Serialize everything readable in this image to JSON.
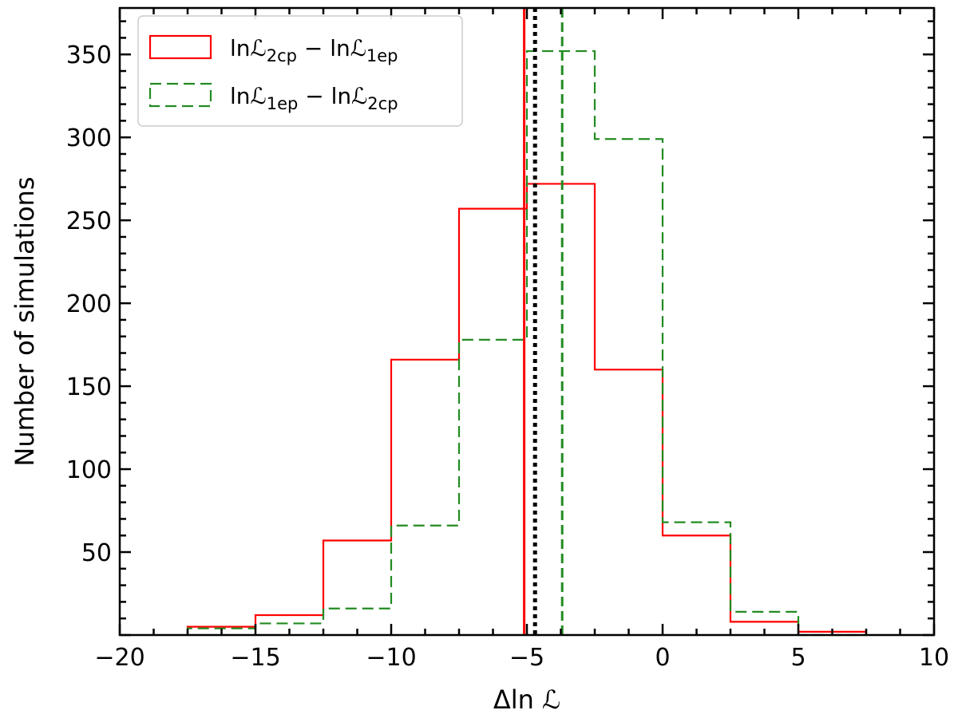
{
  "chart_data": {
    "type": "histogram",
    "xlabel": "Δln ℒ",
    "ylabel": "Number of simulations",
    "xlim": [
      -20,
      10
    ],
    "ylim": [
      0,
      378
    ],
    "x_ticks": [
      -20,
      -15,
      -10,
      -5,
      0,
      5,
      10
    ],
    "x_tick_labels": [
      "−20",
      "−15",
      "−10",
      "−5",
      "0",
      "5",
      "10"
    ],
    "y_ticks": [
      50,
      100,
      150,
      200,
      250,
      300,
      350
    ],
    "y_tick_labels": [
      "50",
      "100",
      "150",
      "200",
      "250",
      "300",
      "350"
    ],
    "grid": false,
    "legend_position": "top-left",
    "bin_edges": [
      -17.5,
      -15.0,
      -12.5,
      -10.0,
      -7.5,
      -5.0,
      -2.5,
      0.0,
      2.5,
      5.0,
      7.5
    ],
    "series": [
      {
        "name": "lnℒ2cp − lnℒ1ep",
        "legend_parts": [
          "lnℒ",
          "2cp",
          " − lnℒ",
          "1ep"
        ],
        "style": "solid",
        "color": "#ff0000",
        "counts": [
          5,
          12,
          57,
          166,
          257,
          272,
          160,
          60,
          8,
          2
        ]
      },
      {
        "name": "lnℒ1ep − lnℒ2cp",
        "legend_parts": [
          "lnℒ",
          "1ep",
          " − lnℒ",
          "2cp"
        ],
        "style": "dashed",
        "color": "#228b22",
        "counts": [
          4,
          7,
          16,
          66,
          178,
          352,
          299,
          68,
          14,
          0
        ]
      }
    ],
    "vertical_lines": [
      {
        "x": -5.1,
        "color": "#ff0000",
        "style": "solid"
      },
      {
        "x": -4.7,
        "color": "#000000",
        "style": "dotted"
      },
      {
        "x": -3.7,
        "color": "#228b22",
        "style": "dashed"
      }
    ]
  }
}
